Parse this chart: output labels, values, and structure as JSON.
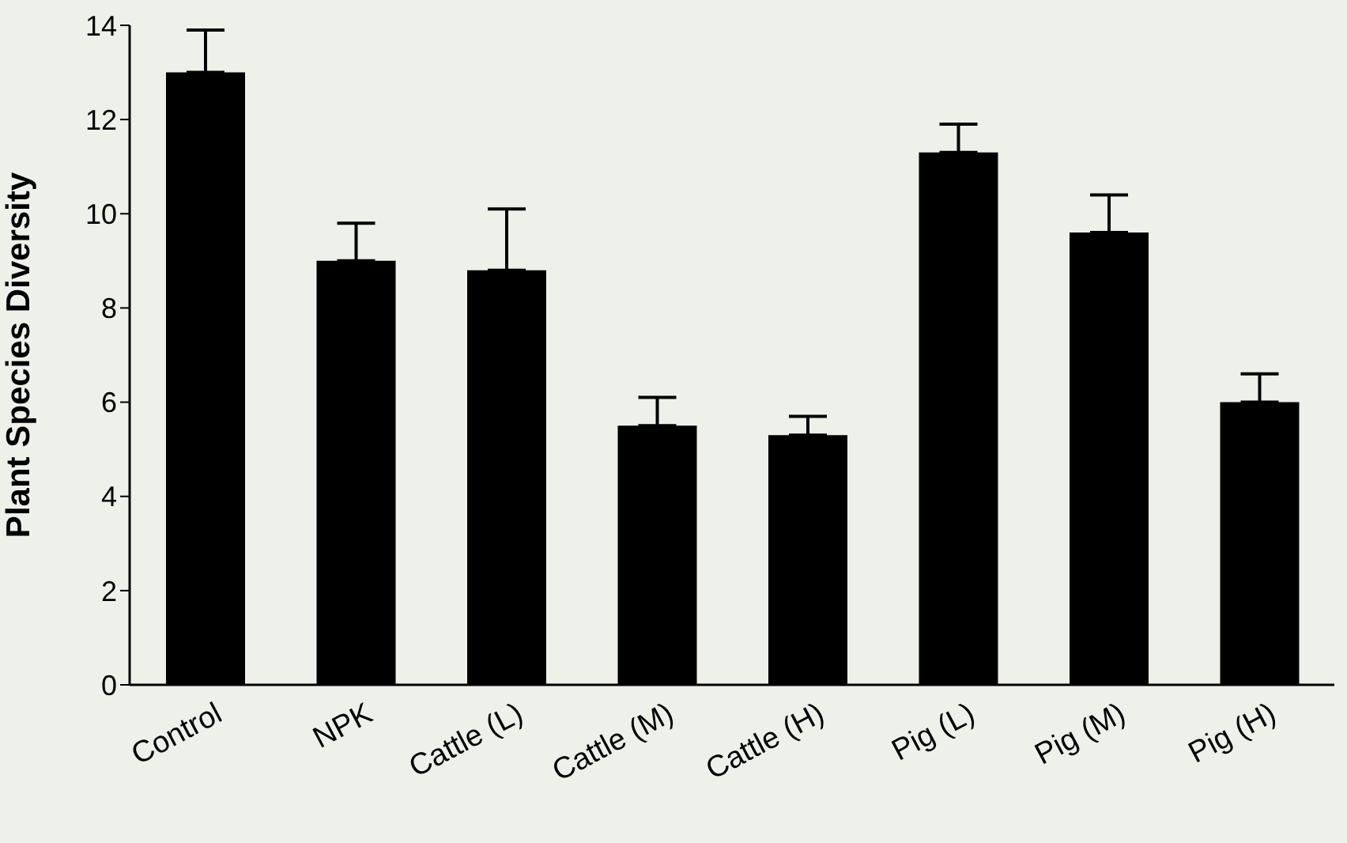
{
  "chart_data": {
    "type": "bar",
    "ylabel": "Plant Species Diversity",
    "categories": [
      "Control",
      "NPK",
      "Cattle (L)",
      "Cattle (M)",
      "Cattle (H)",
      "Pig (L)",
      "Pig (M)",
      "Pig (H)"
    ],
    "values": [
      13,
      9,
      8.8,
      5.5,
      5.3,
      11.3,
      9.6,
      6
    ],
    "errors": [
      [
        13,
        13.9
      ],
      [
        9,
        9.8
      ],
      [
        8.8,
        10.1
      ],
      [
        5.5,
        6.1
      ],
      [
        5.3,
        5.7
      ],
      [
        11.3,
        11.9
      ],
      [
        9.6,
        10.4
      ],
      [
        6,
        6.6
      ]
    ],
    "color": "#000000",
    "ylim": [
      0,
      14
    ],
    "yticks": [
      0,
      2,
      4,
      6,
      8,
      10,
      12,
      14
    ],
    "grid": false,
    "legend": false
  }
}
